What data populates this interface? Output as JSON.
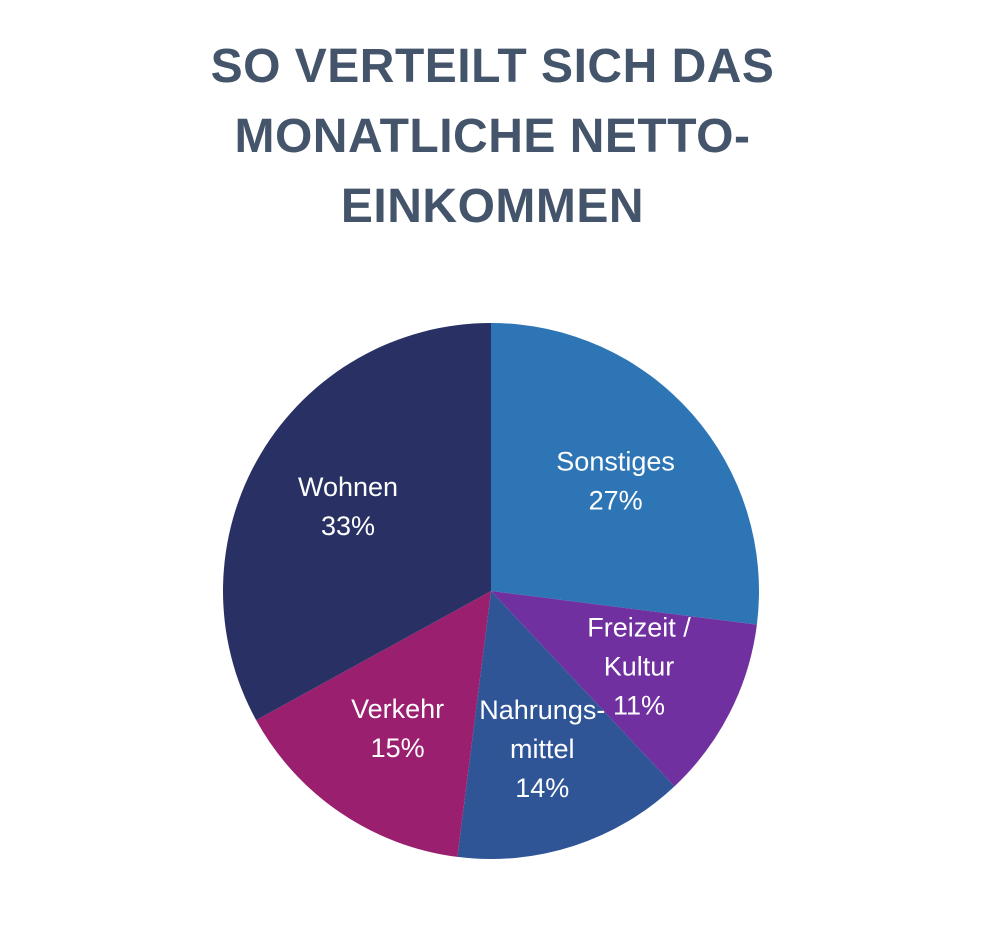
{
  "title_lines": [
    "SO VERTEILT SICH DAS",
    "MONATLICHE NETTO-",
    "EINKOMMEN"
  ],
  "chart_data": {
    "type": "pie",
    "title": "SO VERTEILT SICH DAS MONATLICHE NETTO-EINKOMMEN",
    "start": "12 o'clock",
    "direction": "clockwise",
    "slices": [
      {
        "label": "Sonstiges",
        "label_lines": [
          "Sonstiges"
        ],
        "value": 27,
        "value_text": "27%",
        "color": "#2E75B6"
      },
      {
        "label": "Freizeit / Kultur",
        "label_lines": [
          "Freizeit /",
          "Kultur"
        ],
        "value": 11,
        "value_text": "11%",
        "color": "#7030A0"
      },
      {
        "label": "Nahrungsmittel",
        "label_lines": [
          "Nahrungs-",
          "mittel"
        ],
        "value": 14,
        "value_text": "14%",
        "color": "#2F5597"
      },
      {
        "label": "Verkehr",
        "label_lines": [
          "Verkehr"
        ],
        "value": 15,
        "value_text": "15%",
        "color": "#9A1F6E"
      },
      {
        "label": "Wohnen",
        "label_lines": [
          "Wohnen"
        ],
        "value": 33,
        "value_text": "33%",
        "color": "#283064"
      }
    ]
  }
}
